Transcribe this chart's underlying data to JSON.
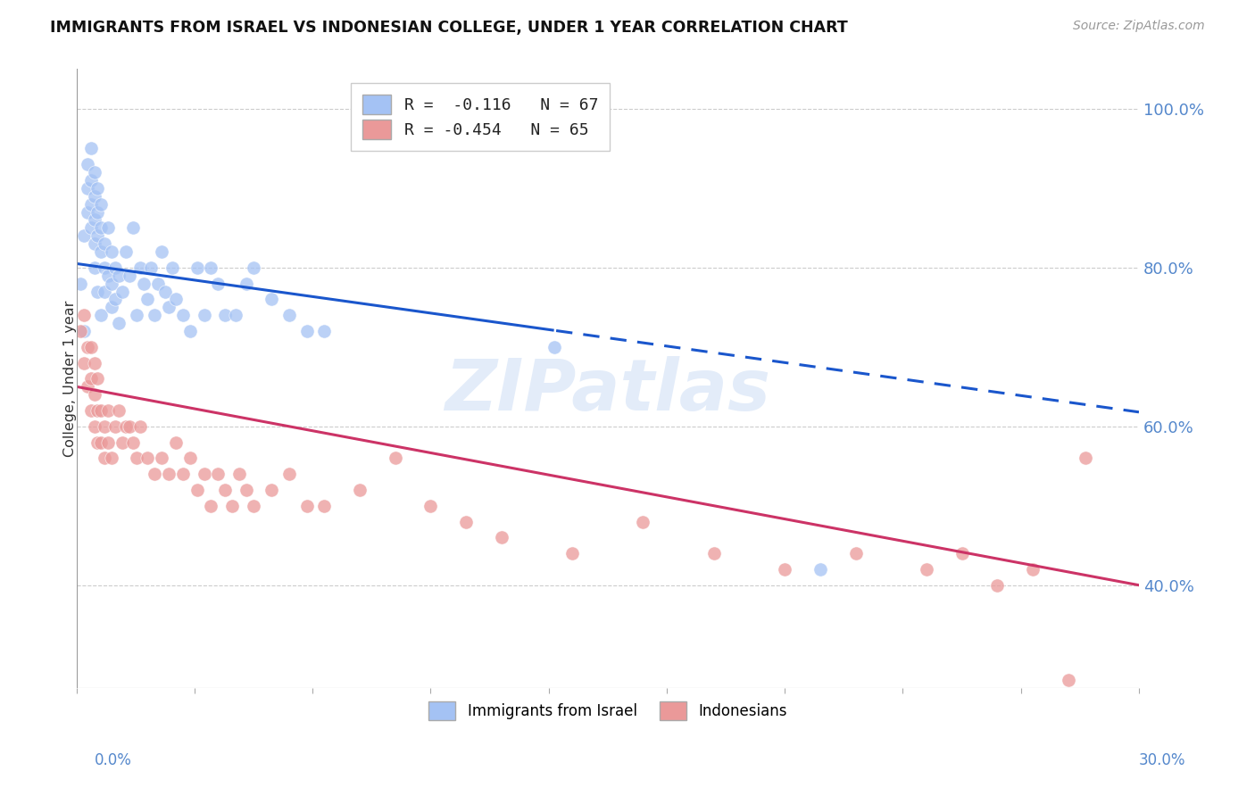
{
  "title": "IMMIGRANTS FROM ISRAEL VS INDONESIAN COLLEGE, UNDER 1 YEAR CORRELATION CHART",
  "source": "Source: ZipAtlas.com",
  "ylabel": "College, Under 1 year",
  "right_yticks": [
    "100.0%",
    "80.0%",
    "60.0%",
    "40.0%"
  ],
  "right_ytick_vals": [
    1.0,
    0.8,
    0.6,
    0.4
  ],
  "xlim": [
    0.0,
    0.3
  ],
  "ylim": [
    0.27,
    1.05
  ],
  "series1_color": "#a4c2f4",
  "series2_color": "#ea9999",
  "trendline1_color": "#1a56cc",
  "trendline2_color": "#cc3366",
  "trendline1_y0": 0.805,
  "trendline1_y1": 0.618,
  "trendline2_y0": 0.65,
  "trendline2_y1": 0.4,
  "trendline1_split_x": 0.135,
  "legend_label1": "R =  -0.116   N = 67",
  "legend_label2": "R = -0.454   N = 65",
  "watermark": "ZIPatlas",
  "bottom_label1": "Immigrants from Israel",
  "bottom_label2": "Indonesians",
  "israel_x": [
    0.001,
    0.002,
    0.002,
    0.003,
    0.003,
    0.003,
    0.004,
    0.004,
    0.004,
    0.004,
    0.005,
    0.005,
    0.005,
    0.005,
    0.005,
    0.006,
    0.006,
    0.006,
    0.006,
    0.007,
    0.007,
    0.007,
    0.007,
    0.008,
    0.008,
    0.008,
    0.009,
    0.009,
    0.01,
    0.01,
    0.01,
    0.011,
    0.011,
    0.012,
    0.012,
    0.013,
    0.014,
    0.015,
    0.016,
    0.017,
    0.018,
    0.019,
    0.02,
    0.021,
    0.022,
    0.023,
    0.024,
    0.025,
    0.026,
    0.027,
    0.028,
    0.03,
    0.032,
    0.034,
    0.036,
    0.038,
    0.04,
    0.042,
    0.045,
    0.048,
    0.05,
    0.055,
    0.06,
    0.065,
    0.07,
    0.135,
    0.21
  ],
  "israel_y": [
    0.78,
    0.72,
    0.84,
    0.9,
    0.87,
    0.93,
    0.88,
    0.85,
    0.91,
    0.95,
    0.86,
    0.83,
    0.89,
    0.92,
    0.8,
    0.84,
    0.87,
    0.9,
    0.77,
    0.82,
    0.85,
    0.88,
    0.74,
    0.8,
    0.83,
    0.77,
    0.79,
    0.85,
    0.78,
    0.82,
    0.75,
    0.8,
    0.76,
    0.79,
    0.73,
    0.77,
    0.82,
    0.79,
    0.85,
    0.74,
    0.8,
    0.78,
    0.76,
    0.8,
    0.74,
    0.78,
    0.82,
    0.77,
    0.75,
    0.8,
    0.76,
    0.74,
    0.72,
    0.8,
    0.74,
    0.8,
    0.78,
    0.74,
    0.74,
    0.78,
    0.8,
    0.76,
    0.74,
    0.72,
    0.72,
    0.7,
    0.42
  ],
  "indonesia_x": [
    0.001,
    0.002,
    0.002,
    0.003,
    0.003,
    0.004,
    0.004,
    0.004,
    0.005,
    0.005,
    0.005,
    0.006,
    0.006,
    0.006,
    0.007,
    0.007,
    0.008,
    0.008,
    0.009,
    0.009,
    0.01,
    0.011,
    0.012,
    0.013,
    0.014,
    0.015,
    0.016,
    0.017,
    0.018,
    0.02,
    0.022,
    0.024,
    0.026,
    0.028,
    0.03,
    0.032,
    0.034,
    0.036,
    0.038,
    0.04,
    0.042,
    0.044,
    0.046,
    0.048,
    0.05,
    0.055,
    0.06,
    0.065,
    0.07,
    0.08,
    0.09,
    0.1,
    0.11,
    0.12,
    0.14,
    0.16,
    0.18,
    0.2,
    0.22,
    0.24,
    0.25,
    0.26,
    0.27,
    0.28,
    0.285
  ],
  "indonesia_y": [
    0.72,
    0.68,
    0.74,
    0.65,
    0.7,
    0.62,
    0.66,
    0.7,
    0.6,
    0.64,
    0.68,
    0.58,
    0.62,
    0.66,
    0.58,
    0.62,
    0.6,
    0.56,
    0.58,
    0.62,
    0.56,
    0.6,
    0.62,
    0.58,
    0.6,
    0.6,
    0.58,
    0.56,
    0.6,
    0.56,
    0.54,
    0.56,
    0.54,
    0.58,
    0.54,
    0.56,
    0.52,
    0.54,
    0.5,
    0.54,
    0.52,
    0.5,
    0.54,
    0.52,
    0.5,
    0.52,
    0.54,
    0.5,
    0.5,
    0.52,
    0.56,
    0.5,
    0.48,
    0.46,
    0.44,
    0.48,
    0.44,
    0.42,
    0.44,
    0.42,
    0.44,
    0.4,
    0.42,
    0.28,
    0.56
  ]
}
